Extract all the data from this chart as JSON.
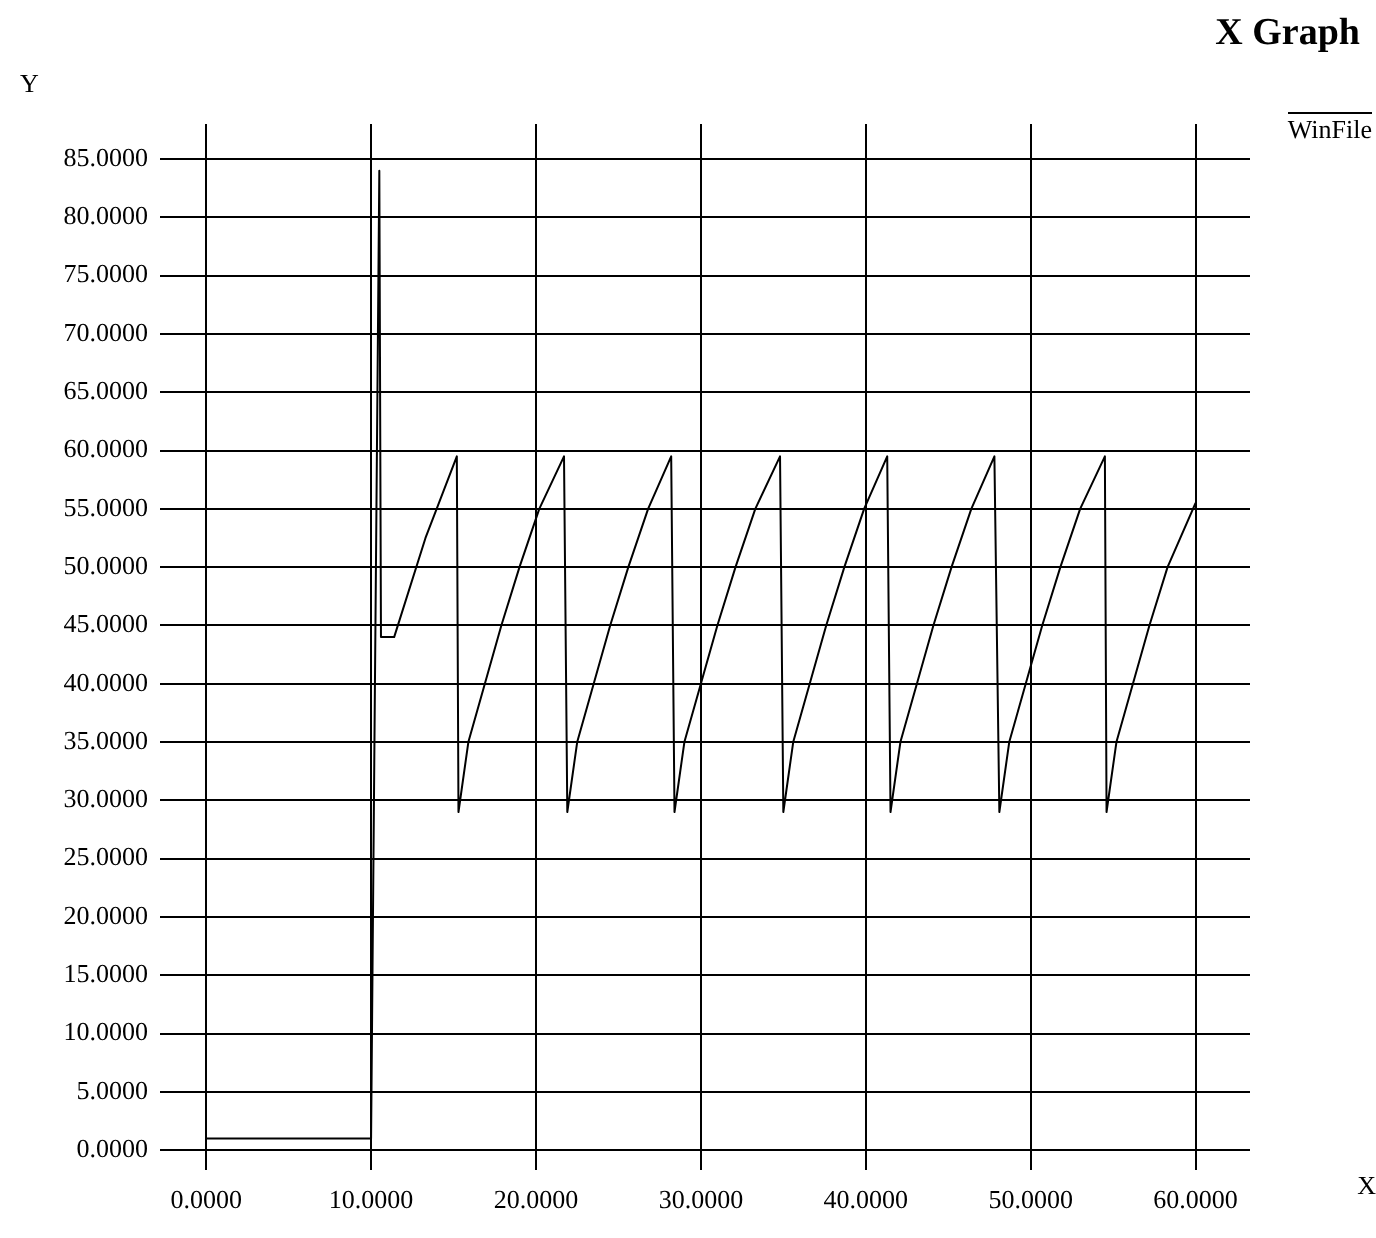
{
  "chart_data": {
    "type": "line",
    "title": "X Graph",
    "xlabel": "X",
    "ylabel": "Y",
    "series": [
      {
        "name": "WinFile",
        "color": "#000000",
        "x": [
          0,
          10,
          10.5,
          10.6,
          11.4,
          13.3,
          15.2,
          15.3,
          15.9,
          16.9,
          17.9,
          19.0,
          20.2,
          21.7,
          21.9,
          22.5,
          23.5,
          24.5,
          25.6,
          26.8,
          28.2,
          28.4,
          29.0,
          30.0,
          31.0,
          32.1,
          33.3,
          34.8,
          35.0,
          35.6,
          36.6,
          37.6,
          38.7,
          39.9,
          41.3,
          41.5,
          42.1,
          43.1,
          44.1,
          45.2,
          46.4,
          47.8,
          48.1,
          48.7,
          49.7,
          50.7,
          51.8,
          53.0,
          54.5,
          54.6,
          55.2,
          56.2,
          57.2,
          58.3,
          60
        ],
        "values": [
          1,
          1,
          84,
          44,
          44,
          52.5,
          59.5,
          29,
          35,
          40,
          45,
          50,
          55,
          59.5,
          29,
          35,
          40,
          45,
          50,
          55,
          59.5,
          29,
          35,
          40,
          45,
          50,
          55,
          59.5,
          29,
          35,
          40,
          45,
          50,
          55,
          59.5,
          29,
          35,
          40,
          45,
          50,
          55,
          59.5,
          29,
          35,
          40,
          45,
          50,
          55,
          59.5,
          29,
          35,
          40,
          45,
          50,
          55.5
        ]
      }
    ],
    "xlim": [
      -2.8,
      63.3
    ],
    "ylim": [
      -1.7,
      88
    ],
    "xticks": [
      {
        "value": 0,
        "label": "0.0000"
      },
      {
        "value": 10,
        "label": "10.0000"
      },
      {
        "value": 20,
        "label": "20.0000"
      },
      {
        "value": 30,
        "label": "30.0000"
      },
      {
        "value": 40,
        "label": "40.0000"
      },
      {
        "value": 50,
        "label": "50.0000"
      },
      {
        "value": 60,
        "label": "60.0000"
      }
    ],
    "yticks": [
      {
        "value": 0,
        "label": "0.0000"
      },
      {
        "value": 5,
        "label": "5.0000"
      },
      {
        "value": 10,
        "label": "10.0000"
      },
      {
        "value": 15,
        "label": "15.0000"
      },
      {
        "value": 20,
        "label": "20.0000"
      },
      {
        "value": 25,
        "label": "25.0000"
      },
      {
        "value": 30,
        "label": "30.0000"
      },
      {
        "value": 35,
        "label": "35.0000"
      },
      {
        "value": 40,
        "label": "40.0000"
      },
      {
        "value": 45,
        "label": "45.0000"
      },
      {
        "value": 50,
        "label": "50.0000"
      },
      {
        "value": 55,
        "label": "55.0000"
      },
      {
        "value": 60,
        "label": "60.0000"
      },
      {
        "value": 65,
        "label": "65.0000"
      },
      {
        "value": 70,
        "label": "70.0000"
      },
      {
        "value": 75,
        "label": "75.0000"
      },
      {
        "value": 80,
        "label": "80.0000"
      },
      {
        "value": 85,
        "label": "85.0000"
      }
    ],
    "grid": true,
    "legend": "top right",
    "marker": "none",
    "line_style": "solid"
  }
}
